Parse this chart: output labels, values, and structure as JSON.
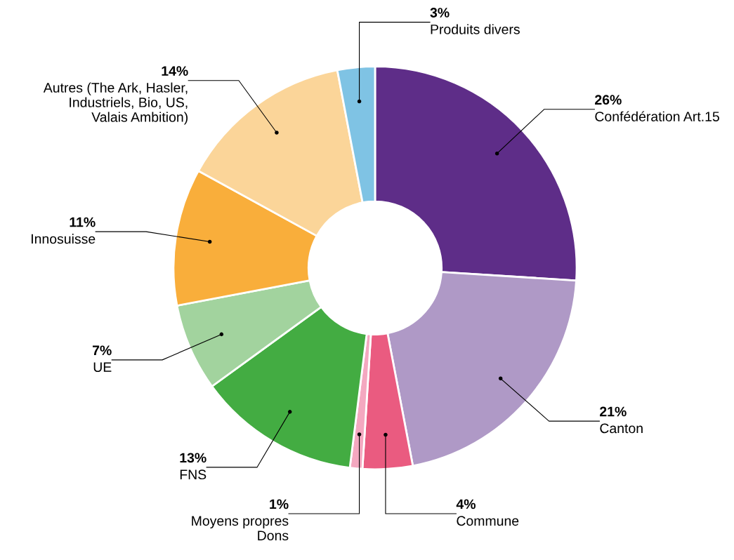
{
  "chart_data": {
    "type": "donut",
    "categories": [
      "Confédération Art.15",
      "Canton",
      "Commune",
      "Moyens propres\nDons",
      "FNS",
      "UE",
      "Innosuisse",
      "Autres (The Ark, Hasler,\nIndustriels, Bio, US,\nValais Ambition)",
      "Produits divers"
    ],
    "values": [
      26,
      21,
      4,
      1,
      13,
      7,
      11,
      14,
      3
    ],
    "value_labels": [
      "26%",
      "21%",
      "4%",
      "1%",
      "13%",
      "7%",
      "11%",
      "14%",
      "3%"
    ],
    "colors": [
      "#5e2d88",
      "#af99c6",
      "#ea5b80",
      "#f4a8c0",
      "#43ac42",
      "#a2d39e",
      "#f9ae3b",
      "#fbd599",
      "#7fc3e4"
    ]
  }
}
